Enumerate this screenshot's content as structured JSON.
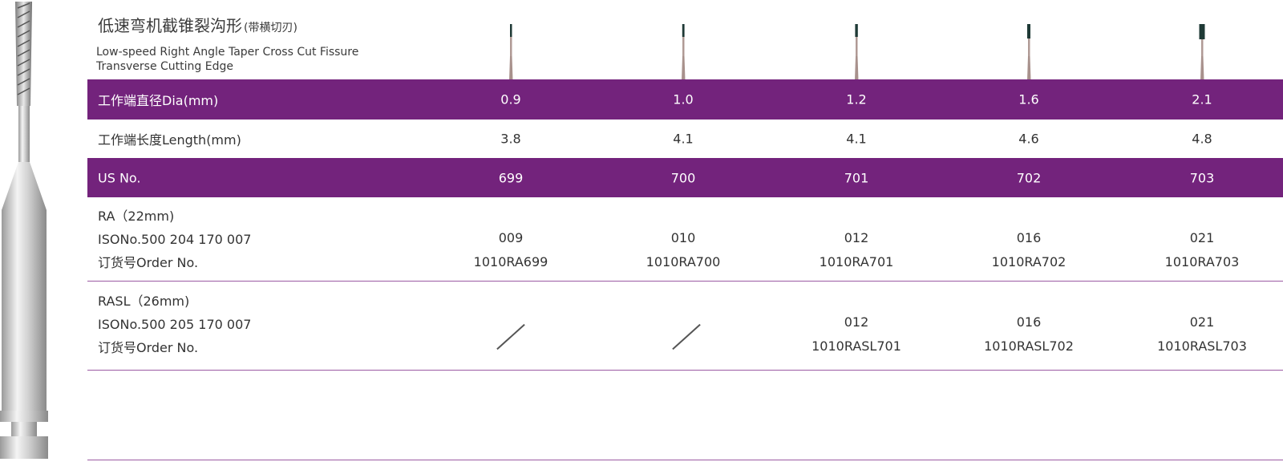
{
  "product": {
    "title_cn": "低速弯机截锥裂沟形",
    "title_cn_sub": "(带横切刃)",
    "title_en_line1": "Low-speed Right Angle Taper Cross Cut Fissure",
    "title_en_line2": "Transverse  Cutting Edge"
  },
  "colors": {
    "band": "#73237c",
    "divider": "#9b5aa3"
  },
  "rows": {
    "dia": {
      "label": "工作端直径Dia(mm)",
      "values": [
        "0.9",
        "1.0",
        "1.2",
        "1.6",
        "2.1"
      ]
    },
    "length": {
      "label": "工作端长度Length(mm)",
      "values": [
        "3.8",
        "4.1",
        "4.1",
        "4.6",
        "4.8"
      ]
    },
    "us": {
      "label": "US No.",
      "values": [
        "699",
        "700",
        "701",
        "702",
        "703"
      ]
    },
    "ra": {
      "label_line1": "RA（22mm)",
      "label_line2": "ISONo.500 204 170 007",
      "label_line3": "订货号Order No.",
      "iso": [
        "009",
        "010",
        "012",
        "016",
        "021"
      ],
      "order": [
        "1010RA699",
        "1010RA700",
        "1010RA701",
        "1010RA702",
        "1010RA703"
      ]
    },
    "rasl": {
      "label_line1": "RASL（26mm)",
      "label_line2": "ISONo.500 205 170 007",
      "label_line3": "订货号Order No.",
      "iso": [
        "",
        "",
        "012",
        "016",
        "021"
      ],
      "order": [
        "",
        "",
        "1010RASL701",
        "1010RASL702",
        "1010RASL703"
      ]
    }
  }
}
